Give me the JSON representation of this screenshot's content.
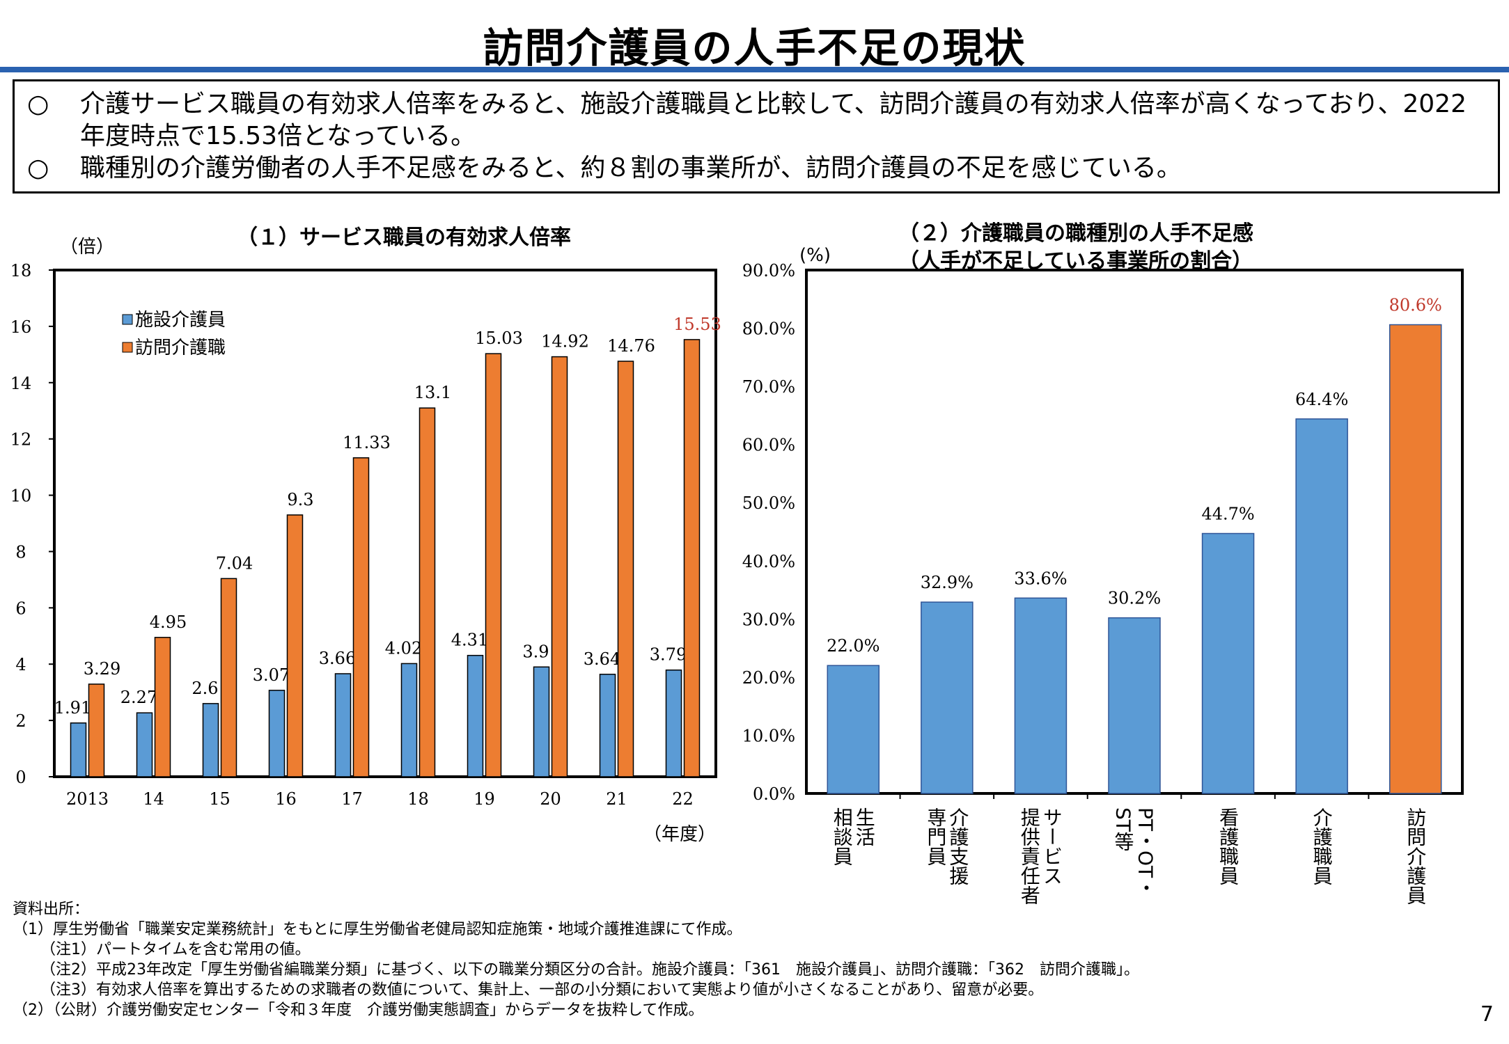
{
  "title": "訪問介護員の人手不足の現状",
  "summary": [
    {
      "mark": "○",
      "text": "介護サービス職員の有効求人倍率をみると、施設介護職員と比較して、訪問介護員の有効求人倍率が高くなっており、2022年度時点で15.53倍となっている。"
    },
    {
      "mark": "○",
      "text": "職種別の介護労働者の人手不足感をみると、約８割の事業所が、訪問介護員の不足を感じている。"
    }
  ],
  "chart1": {
    "heading": "（１）サービス職員の有効求人倍率",
    "y_unit": "（倍）",
    "x_unit": "（年度）"
  },
  "chart2": {
    "heading_line1": "（２）介護職員の職種別の人手不足感",
    "heading_line2": "（人手が不足している事業所の割合）",
    "y_unit": "(%)"
  },
  "chart_data": [
    {
      "type": "bar",
      "title": "（１）サービス職員の有効求人倍率",
      "ylabel": "（倍）",
      "xlabel": "（年度）",
      "ylim": [
        0,
        18
      ],
      "yticks": [
        0,
        2,
        4,
        6,
        8,
        10,
        12,
        14,
        16,
        18
      ],
      "categories": [
        "2013",
        "14",
        "15",
        "16",
        "17",
        "18",
        "19",
        "20",
        "21",
        "22"
      ],
      "legend_position": "top-left",
      "series": [
        {
          "name": "施設介護員",
          "color": "#5b9bd5",
          "values": [
            1.91,
            2.27,
            2.6,
            3.07,
            3.66,
            4.02,
            4.31,
            3.9,
            3.64,
            3.79
          ],
          "labels": [
            "1.91",
            "2.27",
            "2.6",
            "3.07",
            "3.66",
            "4.02",
            "4.31",
            "3.9",
            "3.64",
            "3.79"
          ]
        },
        {
          "name": "訪問介護職",
          "color": "#ed7d31",
          "values": [
            3.29,
            4.95,
            7.04,
            9.3,
            11.33,
            13.1,
            15.03,
            14.92,
            14.76,
            15.53
          ],
          "labels": [
            "3.29",
            "4.95",
            "7.04",
            "9.3",
            "11.33",
            "13.1",
            "15.03",
            "14.92",
            "14.76",
            "15.53"
          ]
        }
      ],
      "highlight_label_color": "#c0392b"
    },
    {
      "type": "bar",
      "title": "（２）介護職員の職種別の人手不足感（人手が不足している事業所の割合）",
      "ylabel": "(%)",
      "ylim": [
        0,
        90
      ],
      "yticks": [
        "0.0%",
        "10.0%",
        "20.0%",
        "30.0%",
        "40.0%",
        "50.0%",
        "60.0%",
        "70.0%",
        "80.0%",
        "90.0%"
      ],
      "categories": [
        [
          "生活",
          "相談員"
        ],
        [
          "介護支援",
          "専門員"
        ],
        [
          "サービス",
          "提供責任者"
        ],
        [
          "PT・OT・",
          "ST等"
        ],
        [
          "看護職員"
        ],
        [
          "介護職員"
        ],
        [
          "訪問介護員"
        ]
      ],
      "values": [
        22.0,
        32.9,
        33.6,
        30.2,
        44.7,
        64.4,
        80.6
      ],
      "labels": [
        "22.0%",
        "32.9%",
        "33.6%",
        "30.2%",
        "44.7%",
        "64.4%",
        "80.6%"
      ],
      "colors": [
        "#5b9bd5",
        "#5b9bd5",
        "#5b9bd5",
        "#5b9bd5",
        "#5b9bd5",
        "#5b9bd5",
        "#ed7d31"
      ],
      "highlight_label_color": "#c0392b"
    }
  ],
  "sources": {
    "heading": "資料出所：",
    "lines": [
      "（1）厚生労働省「職業安定業務統計」をもとに厚生労働省老健局認知症施策・地域介護推進課にて作成。",
      "（注1）パートタイムを含む常用の値。",
      "（注2）平成23年改定「厚生労働省編職業分類」に基づく、以下の職業分類区分の合計。施設介護員：「361　施設介護員」、訪問介護職：「362　訪問介護職」。",
      "（注3）有効求人倍率を算出するための求職者の数値について、集計上、一部の小分類において実態より値が小さくなることがあり、留意が必要。",
      "（2）（公財）介護労働安定センター「令和３年度　介護労働実態調査」からデータを抜粋して作成。"
    ]
  },
  "page_number": "7"
}
